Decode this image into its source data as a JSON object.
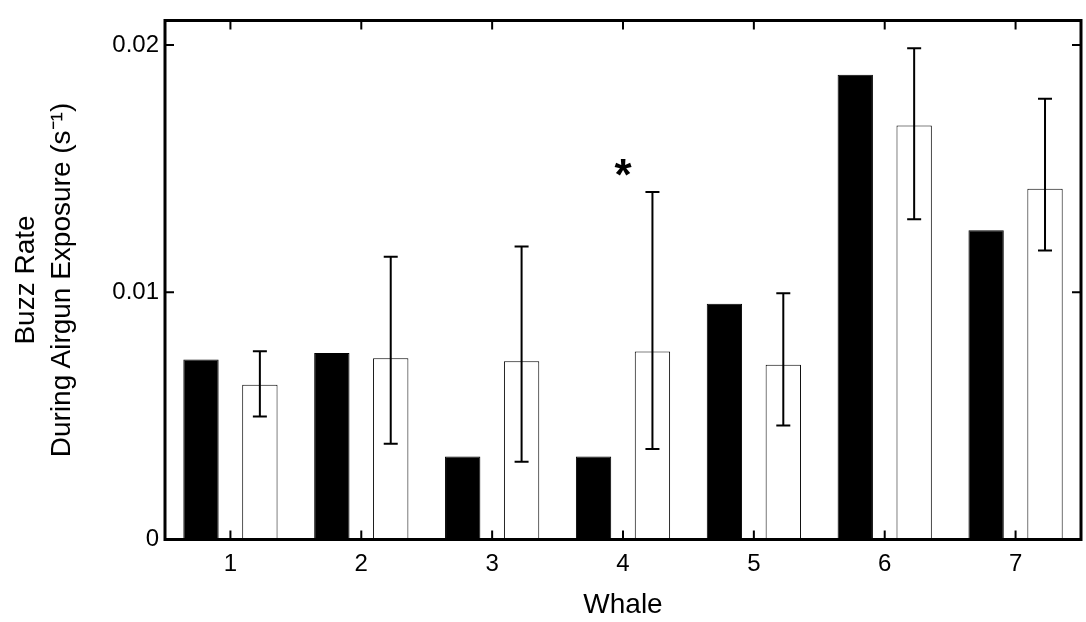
{
  "chart_data": {
    "type": "bar",
    "xlabel": "Whale",
    "ylabel": "Buzz Rate\nDuring Airgun Exposure (s⁻¹)",
    "categories": [
      "1",
      "2",
      "3",
      "4",
      "5",
      "6",
      "7"
    ],
    "series": [
      {
        "color": "#000000",
        "values": [
          0.00728,
          0.00755,
          0.00336,
          0.00336,
          0.00954,
          0.0188,
          0.01251
        ]
      },
      {
        "color": "#ffffff",
        "values": [
          0.00626,
          0.00733,
          0.00721,
          0.00761,
          0.00707,
          0.01675,
          0.01419
        ],
        "errors": [
          [
            0.00498,
            0.00762
          ],
          [
            0.00388,
            0.01144
          ],
          [
            0.00315,
            0.01186
          ],
          [
            0.00366,
            0.01406
          ],
          [
            0.00461,
            0.00996
          ],
          [
            0.01296,
            0.01987
          ],
          [
            0.01169,
            0.01783
          ]
        ]
      }
    ],
    "ylim": [
      0,
      0.021
    ],
    "yticks": [
      0,
      0.01,
      0.02
    ],
    "grid": false,
    "legend": false,
    "annotations": [
      "*"
    ]
  }
}
